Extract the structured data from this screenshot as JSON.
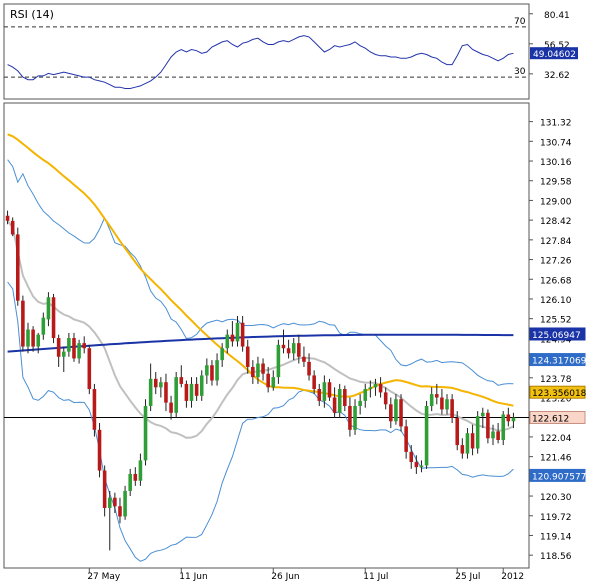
{
  "rsi_panel": {
    "title": "RSI (14)",
    "level_70_label": "70",
    "level_30_label": "30",
    "ticks": [
      "80.41",
      "56.52",
      "32.62"
    ],
    "current_value_label": "49.04602",
    "ylim": [
      15,
      85
    ],
    "upper_level": 70,
    "lower_level": 30
  },
  "price_panel": {
    "ticks": [
      "131.32",
      "130.74",
      "130.16",
      "129.58",
      "129.00",
      "128.42",
      "127.84",
      "127.26",
      "126.68",
      "126.10",
      "125.52",
      "124.94",
      "124.36",
      "123.78",
      "123.20",
      "122.62",
      "122.04",
      "121.46",
      "120.88",
      "120.30",
      "119.72",
      "119.14",
      "118.56"
    ],
    "ylim": [
      118.3,
      131.75
    ],
    "last_price_line": 122.612
  },
  "x_axis": {
    "labels": [
      "27 May",
      "11 Jun",
      "26 Jun",
      "11 Jul",
      "25 Jul",
      "2012"
    ]
  },
  "value_tags": [
    {
      "label": "125.06947",
      "bg": "#1a33a6",
      "fg": "#ffffff",
      "border": "#1a33a6"
    },
    {
      "label": "124.317069",
      "bg": "#2f6cc7",
      "fg": "#ffffff",
      "border": "#2f6cc7"
    },
    {
      "label": "123.356018",
      "bg": "#f2c010",
      "fg": "#000000",
      "border": "#b08000"
    },
    {
      "label": "122.612",
      "bg": "#f9d6c8",
      "fg": "#000000",
      "border": "#c89080"
    },
    {
      "label": "120.907577",
      "bg": "#2f6cc7",
      "fg": "#ffffff",
      "border": "#2f6cc7"
    }
  ],
  "colors": {
    "bull": "#2f9e36",
    "bear": "#b81a1a",
    "bollinger": "#4a8fd4",
    "sma_fast": "#c0c0c0",
    "sma_mid": "#f4b400",
    "sma_slow": "#1a33a6",
    "rsi_line": "#2233aa"
  },
  "chart_data": {
    "type": "candlestick",
    "bars": 100,
    "candles": [
      [
        128.55,
        128.7,
        128.3,
        128.4
      ],
      [
        128.4,
        128.5,
        127.95,
        128.0
      ],
      [
        128.0,
        128.2,
        125.9,
        126.05
      ],
      [
        126.05,
        126.2,
        124.55,
        124.7
      ],
      [
        124.7,
        125.4,
        124.5,
        125.2
      ],
      [
        125.2,
        125.3,
        124.55,
        124.7
      ],
      [
        124.7,
        125.1,
        124.5,
        125.05
      ],
      [
        125.05,
        125.7,
        124.9,
        125.55
      ],
      [
        125.5,
        126.3,
        125.3,
        126.15
      ],
      [
        126.15,
        126.25,
        124.8,
        124.95
      ],
      [
        124.95,
        125.05,
        124.1,
        124.4
      ],
      [
        124.4,
        124.7,
        123.95,
        124.55
      ],
      [
        124.55,
        125.1,
        124.4,
        124.95
      ],
      [
        124.95,
        125.1,
        124.25,
        124.35
      ],
      [
        124.35,
        124.9,
        124.2,
        124.8
      ],
      [
        124.8,
        125.0,
        124.5,
        124.65
      ],
      [
        124.65,
        124.75,
        123.3,
        123.45
      ],
      [
        123.45,
        123.6,
        122.05,
        122.25
      ],
      [
        122.25,
        122.45,
        120.85,
        121.05
      ],
      [
        121.05,
        121.2,
        119.7,
        119.95
      ],
      [
        119.95,
        120.45,
        118.7,
        120.25
      ],
      [
        120.25,
        120.4,
        119.8,
        120.0
      ],
      [
        120.0,
        120.25,
        119.5,
        119.7
      ],
      [
        119.7,
        120.6,
        119.6,
        120.45
      ],
      [
        120.45,
        121.1,
        120.3,
        120.95
      ],
      [
        120.95,
        121.15,
        120.6,
        120.75
      ],
      [
        120.75,
        121.55,
        120.6,
        121.35
      ],
      [
        121.35,
        123.15,
        121.2,
        122.95
      ],
      [
        122.95,
        124.2,
        122.8,
        123.75
      ],
      [
        123.75,
        123.95,
        123.3,
        123.5
      ],
      [
        123.5,
        123.8,
        123.2,
        123.65
      ],
      [
        123.65,
        123.9,
        122.8,
        123.05
      ],
      [
        123.05,
        123.25,
        122.55,
        122.75
      ],
      [
        122.75,
        123.95,
        122.6,
        123.8
      ],
      [
        123.8,
        124.15,
        123.5,
        123.6
      ],
      [
        123.6,
        123.7,
        122.9,
        123.1
      ],
      [
        123.1,
        123.8,
        122.9,
        123.6
      ],
      [
        123.6,
        123.8,
        123.1,
        123.25
      ],
      [
        123.25,
        124.0,
        123.1,
        123.85
      ],
      [
        123.85,
        124.35,
        123.6,
        124.15
      ],
      [
        124.15,
        124.3,
        123.55,
        123.7
      ],
      [
        123.7,
        124.5,
        123.55,
        124.3
      ],
      [
        124.3,
        124.8,
        124.1,
        124.65
      ],
      [
        124.65,
        125.2,
        124.5,
        125.05
      ],
      [
        125.05,
        125.45,
        124.7,
        124.85
      ],
      [
        124.85,
        125.6,
        124.7,
        125.4
      ],
      [
        125.4,
        125.6,
        124.55,
        124.7
      ],
      [
        124.7,
        124.9,
        123.9,
        124.1
      ],
      [
        124.1,
        124.3,
        123.6,
        123.8
      ],
      [
        123.8,
        124.4,
        123.6,
        124.2
      ],
      [
        124.2,
        124.35,
        123.7,
        123.9
      ],
      [
        123.9,
        124.1,
        123.35,
        123.5
      ],
      [
        123.5,
        124.0,
        123.4,
        123.8
      ],
      [
        123.8,
        124.9,
        123.6,
        124.75
      ],
      [
        124.75,
        125.2,
        124.5,
        124.65
      ],
      [
        124.65,
        124.9,
        124.35,
        124.5
      ],
      [
        124.5,
        124.95,
        124.3,
        124.8
      ],
      [
        124.8,
        125.05,
        124.2,
        124.4
      ],
      [
        124.4,
        124.7,
        124.1,
        124.25
      ],
      [
        124.25,
        124.5,
        123.7,
        123.85
      ],
      [
        123.85,
        124.0,
        123.3,
        123.45
      ],
      [
        123.45,
        123.6,
        122.95,
        123.1
      ],
      [
        123.1,
        123.85,
        122.9,
        123.65
      ],
      [
        123.65,
        123.75,
        123.1,
        123.2
      ],
      [
        123.2,
        123.5,
        122.6,
        122.75
      ],
      [
        122.75,
        123.6,
        122.6,
        123.45
      ],
      [
        123.45,
        123.55,
        122.8,
        122.95
      ],
      [
        122.95,
        123.2,
        122.05,
        122.25
      ],
      [
        122.25,
        123.15,
        122.1,
        122.95
      ],
      [
        122.95,
        123.3,
        122.7,
        123.1
      ],
      [
        123.1,
        123.6,
        122.9,
        123.45
      ],
      [
        123.45,
        123.7,
        123.2,
        123.5
      ],
      [
        123.5,
        123.75,
        123.25,
        123.6
      ],
      [
        123.6,
        123.8,
        123.2,
        123.35
      ],
      [
        123.35,
        123.5,
        122.85,
        123.0
      ],
      [
        123.0,
        123.2,
        122.3,
        122.5
      ],
      [
        122.5,
        123.3,
        122.4,
        123.15
      ],
      [
        123.15,
        123.3,
        122.2,
        122.35
      ],
      [
        122.35,
        122.55,
        121.4,
        121.6
      ],
      [
        121.6,
        121.8,
        121.1,
        121.3
      ],
      [
        121.3,
        121.5,
        120.95,
        121.15
      ],
      [
        121.15,
        121.35,
        121.0,
        121.2
      ],
      [
        121.2,
        123.1,
        121.1,
        122.95
      ],
      [
        122.95,
        123.5,
        122.8,
        123.3
      ],
      [
        123.3,
        123.6,
        123.0,
        123.2
      ],
      [
        123.2,
        123.45,
        122.7,
        122.85
      ],
      [
        122.85,
        123.3,
        122.7,
        123.15
      ],
      [
        123.15,
        123.3,
        122.45,
        122.6
      ],
      [
        122.6,
        122.8,
        121.65,
        121.8
      ],
      [
        121.8,
        122.0,
        121.4,
        121.55
      ],
      [
        121.55,
        122.3,
        121.4,
        122.15
      ],
      [
        122.15,
        122.4,
        121.5,
        121.7
      ],
      [
        121.7,
        122.8,
        121.55,
        122.65
      ],
      [
        122.65,
        122.9,
        122.3,
        122.75
      ],
      [
        122.75,
        122.85,
        121.85,
        122.0
      ],
      [
        122.0,
        122.4,
        121.8,
        122.2
      ],
      [
        122.2,
        122.45,
        121.85,
        121.95
      ],
      [
        121.95,
        122.8,
        121.8,
        122.7
      ],
      [
        122.7,
        122.9,
        122.35,
        122.5
      ],
      [
        122.5,
        122.75,
        122.3,
        122.61
      ]
    ],
    "rsi": [
      40,
      38,
      35,
      30,
      28,
      28,
      31,
      31,
      33,
      32,
      33,
      34,
      33,
      32,
      31,
      30,
      30,
      28,
      27,
      26,
      24,
      22,
      22,
      21,
      21,
      22,
      23,
      25,
      27,
      30,
      34,
      40,
      46,
      50,
      52,
      50,
      52,
      51,
      49,
      50,
      54,
      56,
      58,
      59,
      56,
      54,
      57,
      58,
      60,
      61,
      58,
      56,
      56,
      58,
      59,
      58,
      60,
      62,
      63,
      62,
      58,
      54,
      50,
      52,
      55,
      54,
      55,
      56,
      58,
      55,
      53,
      50,
      48,
      47,
      47,
      46,
      46,
      45,
      45,
      46,
      48,
      49,
      48,
      46,
      45,
      42,
      40,
      40,
      47,
      55,
      56,
      52,
      50,
      48,
      47,
      45,
      43,
      45,
      48,
      49
    ],
    "xlabel": "",
    "ylabel": ""
  }
}
